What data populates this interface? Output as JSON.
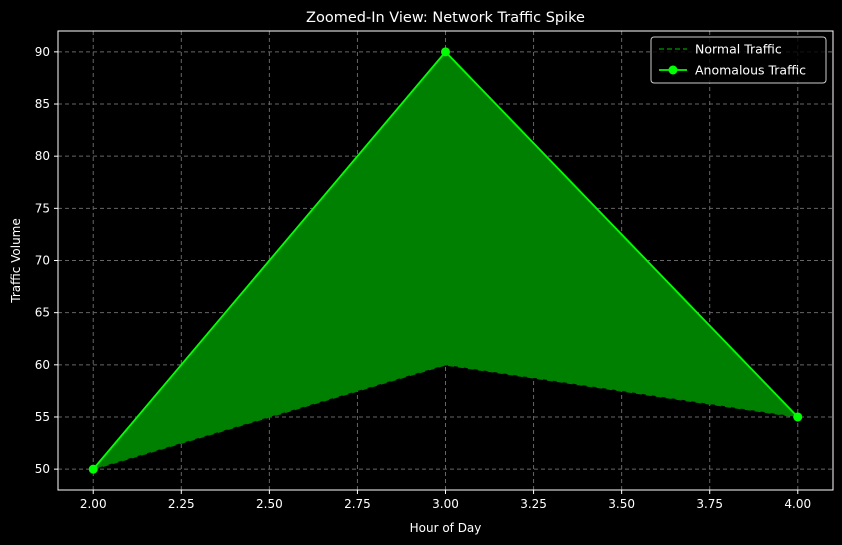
{
  "chart_data": {
    "type": "line",
    "title": "Zoomed-In View: Network Traffic Spike",
    "xlabel": "Hour of Day",
    "ylabel": "Traffic Volume",
    "xlim": [
      1.9,
      4.1
    ],
    "ylim": [
      48.0,
      92.0
    ],
    "x_ticks": [
      2.0,
      2.25,
      2.5,
      2.75,
      3.0,
      3.25,
      3.5,
      3.75,
      4.0
    ],
    "y_ticks": [
      50,
      55,
      60,
      65,
      70,
      75,
      80,
      85,
      90
    ],
    "grid": true,
    "legend_position": "top-right",
    "fill_between": {
      "lower": "Normal Traffic",
      "upper": "Anomalous Traffic",
      "color": "#008000"
    },
    "series": [
      {
        "name": "Normal Traffic",
        "x": [
          2,
          3,
          4
        ],
        "values": [
          50,
          60,
          55
        ],
        "color": "#008000",
        "style": "dashed"
      },
      {
        "name": "Anomalous Traffic",
        "x": [
          2,
          3,
          4
        ],
        "values": [
          50,
          90,
          55
        ],
        "color": "#00ff00",
        "style": "solid",
        "marker": "circle"
      }
    ]
  }
}
